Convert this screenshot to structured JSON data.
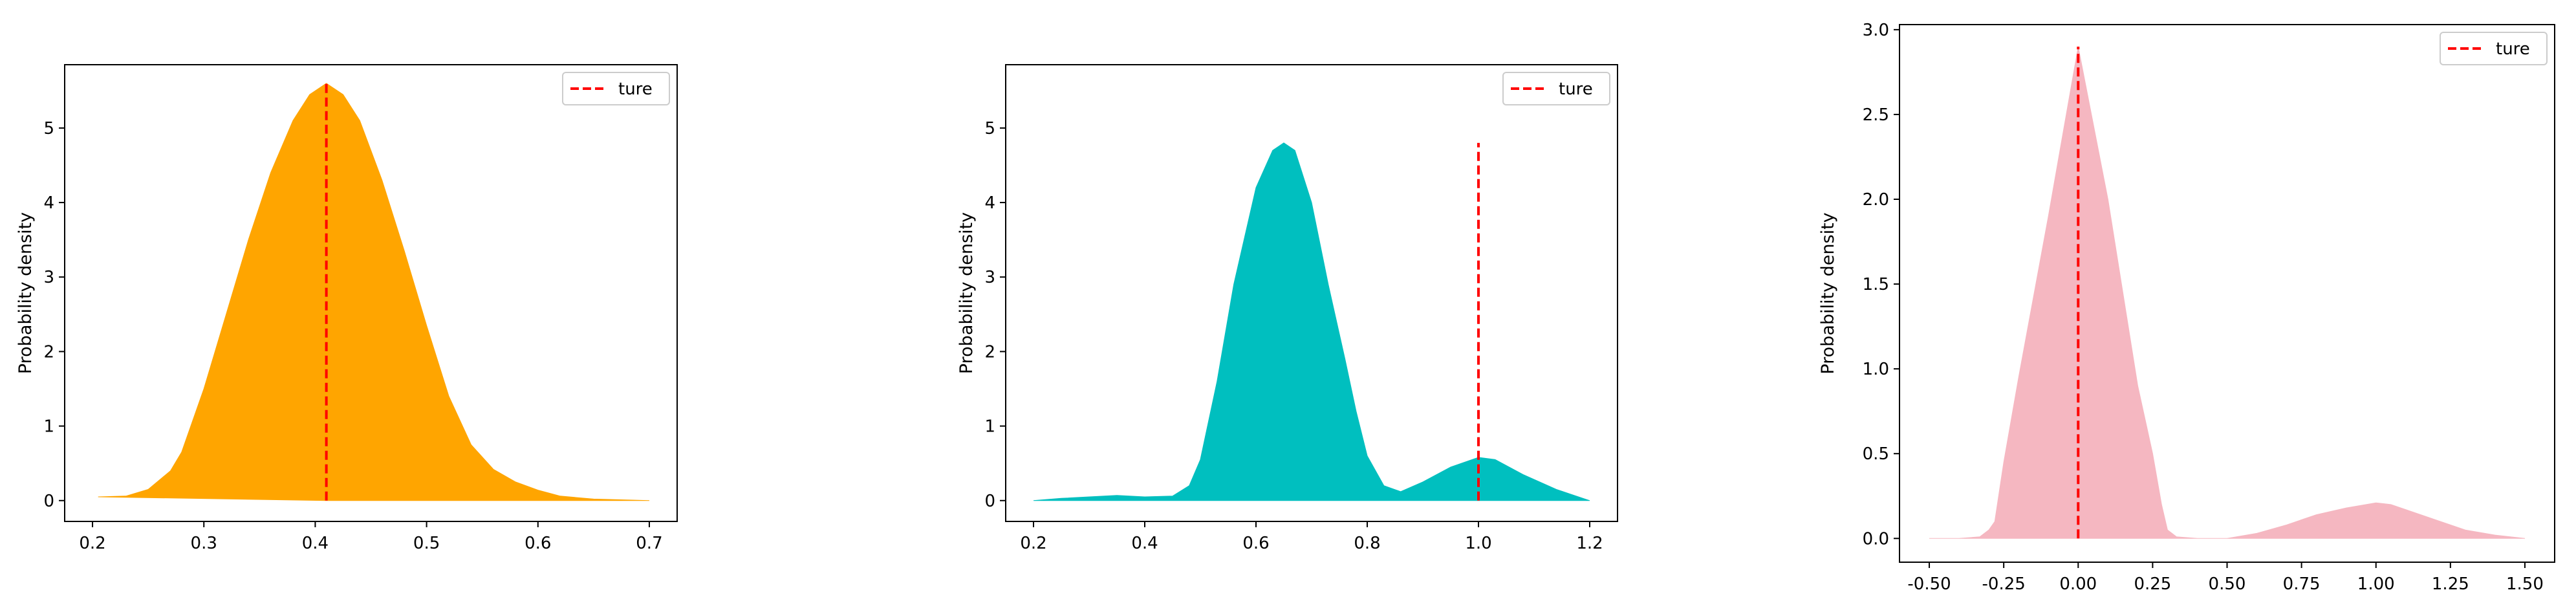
{
  "chart_data": [
    {
      "type": "area",
      "fill_color": "#FFA500",
      "true_line_color": "#FF0000",
      "ylabel": "Probability density",
      "xlabel": "",
      "xlim": [
        0.175,
        0.725
      ],
      "ylim": [
        -0.28,
        5.85
      ],
      "xticks": [
        0.2,
        0.3,
        0.4,
        0.5,
        0.6,
        0.7
      ],
      "xtick_labels": [
        "0.2",
        "0.3",
        "0.4",
        "0.5",
        "0.6",
        "0.7"
      ],
      "yticks": [
        0,
        1,
        2,
        3,
        4,
        5
      ],
      "ytick_labels": [
        "0",
        "1",
        "2",
        "3",
        "4",
        "5"
      ],
      "legend": {
        "label": "ture",
        "placement": "top-right"
      },
      "true_value": 0.41,
      "series": [
        {
          "x": [
            0.205,
            0.23,
            0.25,
            0.27,
            0.28,
            0.3,
            0.32,
            0.34,
            0.36,
            0.38,
            0.395,
            0.41,
            0.425,
            0.44,
            0.46,
            0.48,
            0.5,
            0.52,
            0.54,
            0.56,
            0.58,
            0.6,
            0.62,
            0.65,
            0.7
          ],
          "y": [
            0.05,
            0.06,
            0.15,
            0.4,
            0.65,
            1.5,
            2.5,
            3.5,
            4.4,
            5.1,
            5.45,
            5.6,
            5.45,
            5.1,
            4.3,
            3.35,
            2.35,
            1.4,
            0.75,
            0.42,
            0.25,
            0.14,
            0.06,
            0.02,
            0.0
          ]
        },
        {
          "x": [
            0.205,
            0.41,
            0.7
          ],
          "y": [
            0.05,
            0.0,
            0.0
          ]
        }
      ]
    },
    {
      "type": "area",
      "fill_color": "#00BFBF",
      "true_line_color": "#FF0000",
      "ylabel": "Probability density",
      "xlabel": "",
      "xlim": [
        0.15,
        1.25
      ],
      "ylim": [
        -0.28,
        5.85
      ],
      "xticks": [
        0.2,
        0.4,
        0.6,
        0.8,
        1.0,
        1.2
      ],
      "xtick_labels": [
        "0.2",
        "0.4",
        "0.6",
        "0.8",
        "1.0",
        "1.2"
      ],
      "yticks": [
        0,
        1,
        2,
        3,
        4,
        5
      ],
      "ytick_labels": [
        "0",
        "1",
        "2",
        "3",
        "4",
        "5"
      ],
      "legend": {
        "label": "ture",
        "placement": "top-right"
      },
      "true_value": 1.0,
      "series": [
        {
          "x": [
            0.2,
            0.25,
            0.3,
            0.35,
            0.4,
            0.45,
            0.48,
            0.5,
            0.53,
            0.56,
            0.6,
            0.63,
            0.65,
            0.67,
            0.7,
            0.73,
            0.76,
            0.78,
            0.8,
            0.83,
            0.86,
            0.9,
            0.95,
            1.0,
            1.03,
            1.08,
            1.14,
            1.2
          ],
          "y": [
            0.0,
            0.03,
            0.05,
            0.07,
            0.05,
            0.06,
            0.2,
            0.55,
            1.6,
            2.9,
            4.2,
            4.7,
            4.8,
            4.7,
            4.0,
            2.9,
            1.9,
            1.2,
            0.6,
            0.2,
            0.12,
            0.25,
            0.45,
            0.58,
            0.55,
            0.35,
            0.15,
            0.0
          ]
        }
      ]
    },
    {
      "type": "area",
      "fill_color": "#F5B7C1",
      "true_line_color": "#FF0000",
      "ylabel": "Probability density",
      "xlabel": "",
      "xlim": [
        -0.6,
        1.6
      ],
      "ylim": [
        -0.14,
        3.03
      ],
      "xticks": [
        -0.5,
        -0.25,
        0.0,
        0.25,
        0.5,
        0.75,
        1.0,
        1.25,
        1.5
      ],
      "xtick_labels": [
        "-0.50",
        "-0.25",
        "0.00",
        "0.25",
        "0.50",
        "0.75",
        "1.00",
        "1.25",
        "1.50"
      ],
      "yticks": [
        0.0,
        0.5,
        1.0,
        1.5,
        2.0,
        2.5,
        3.0
      ],
      "ytick_labels": [
        "0.0",
        "0.5",
        "1.0",
        "1.5",
        "2.0",
        "2.5",
        "3.0"
      ],
      "legend": {
        "label": "ture",
        "placement": "top-right"
      },
      "true_value": 0.0,
      "series": [
        {
          "x": [
            -0.5,
            -0.4,
            -0.33,
            -0.3,
            -0.28,
            -0.25,
            -0.2,
            -0.1,
            0.0,
            0.1,
            0.2,
            0.25,
            0.28,
            0.3,
            0.33,
            0.4,
            0.5,
            0.6,
            0.7,
            0.8,
            0.9,
            1.0,
            1.05,
            1.1,
            1.2,
            1.3,
            1.4,
            1.5
          ],
          "y": [
            0.0,
            0.0,
            0.01,
            0.05,
            0.1,
            0.45,
            0.95,
            1.9,
            2.9,
            2.0,
            0.9,
            0.5,
            0.2,
            0.05,
            0.01,
            0.0,
            0.0,
            0.03,
            0.08,
            0.14,
            0.18,
            0.21,
            0.2,
            0.17,
            0.11,
            0.05,
            0.02,
            0.0
          ]
        }
      ]
    }
  ]
}
